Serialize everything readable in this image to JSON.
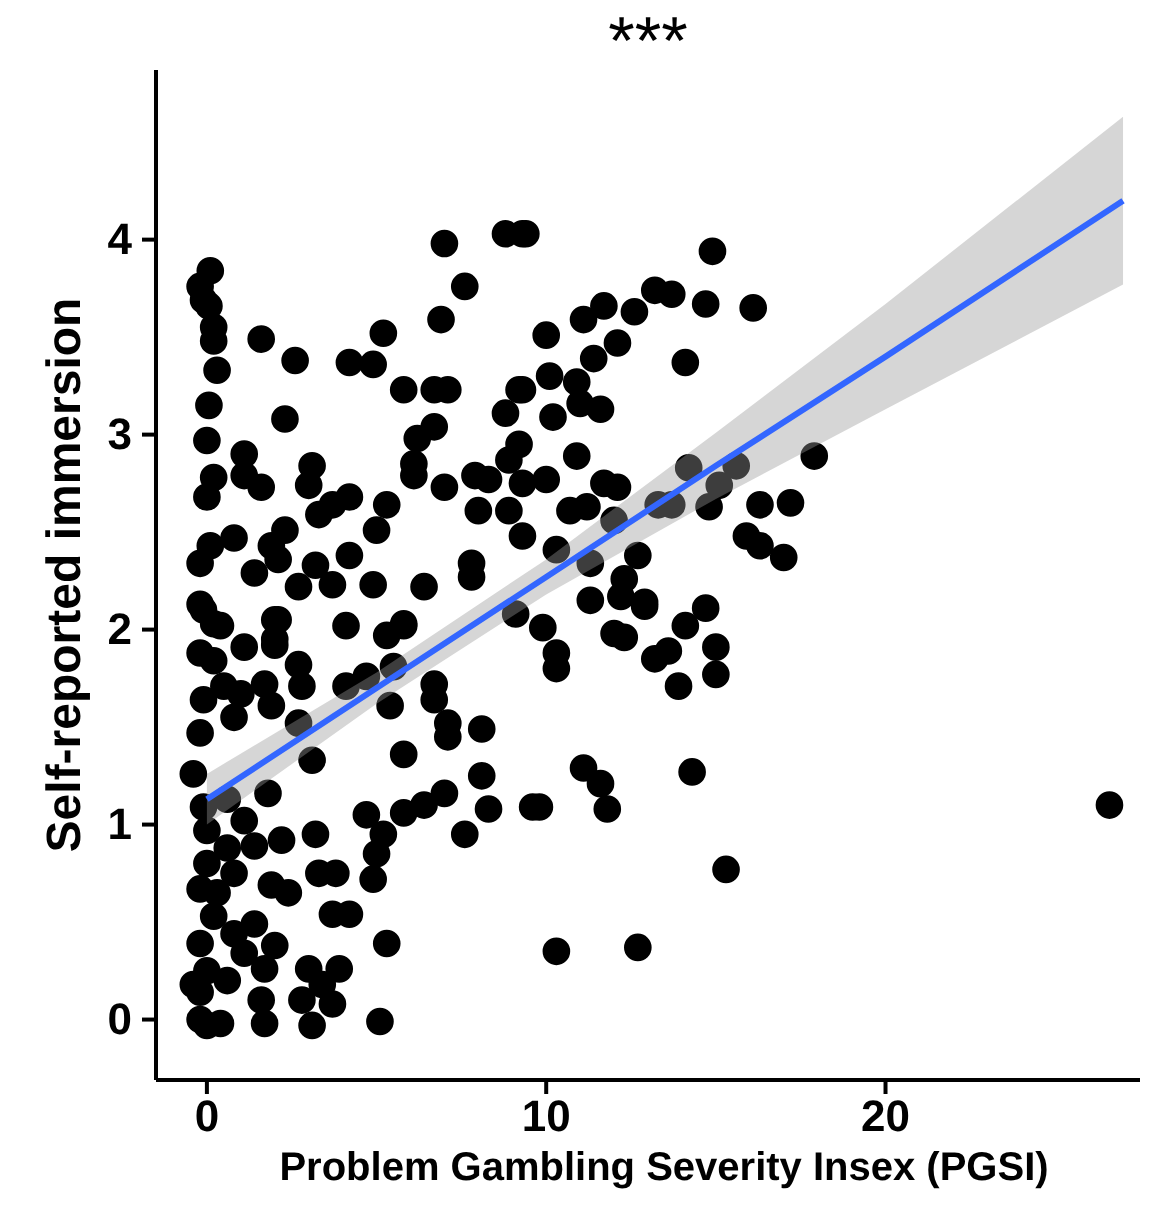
{
  "chart_data": {
    "type": "scatter",
    "title": "***",
    "xlabel": "Problem Gambling Severity Insex (PGSI)",
    "ylabel": "Self-reported immersion",
    "xlim": [
      -1.5,
      27.5
    ],
    "ylim": [
      -0.31,
      4.87
    ],
    "xticks": [
      0,
      10,
      20
    ],
    "yticks": [
      0,
      1,
      2,
      3,
      4
    ],
    "line_style": "solid",
    "series": [
      {
        "color": "#000000",
        "marker": "circle",
        "x": [
          26.6,
          9.8,
          11.1,
          11.6,
          11.8,
          14.3,
          15.3,
          10.3,
          12.7,
          9.9,
          10.3,
          10.3,
          11.3,
          12.2,
          12.9,
          12.0,
          12.3,
          13.2,
          13.6,
          13.9,
          14.1,
          14.7,
          15.0,
          15.0,
          9.4,
          14.9,
          10.0,
          11.1,
          11.7,
          12.6,
          13.2,
          13.7,
          14.7,
          16.1,
          12.1,
          11.4,
          14.1,
          10.1,
          10.9,
          11.0,
          11.6,
          10.2,
          9.3,
          10.9,
          10.0,
          11.7,
          12.1,
          10.7,
          11.2,
          12.0,
          14.2,
          15.6,
          17.9,
          13.3,
          13.7,
          14.8,
          15.1,
          16.3,
          17.2,
          15.9,
          16.3,
          17.0,
          10.3,
          11.3,
          12.7,
          12.3,
          12.9,
          0.1,
          -0.2,
          -0.1,
          0.06,
          0.2,
          0.2,
          0.3,
          0.06,
          0,
          0.2,
          0,
          0.1,
          -0.2,
          -0.2,
          0.2,
          1.6,
          2.6,
          2.3,
          1.1,
          1.1,
          1.6,
          0.8,
          1.9,
          1.4,
          2.1,
          2.3,
          3.1,
          3.0,
          3.3,
          3.7,
          4.2,
          2.7,
          3.2,
          3.7,
          4.2,
          4.9,
          5.0,
          5.3,
          2.1,
          4.1,
          5.8,
          4.2,
          4.9,
          5.2,
          5.8,
          6.7,
          7.1,
          7.0,
          7.6,
          6.9,
          8.8,
          9.3,
          9.2,
          8.8,
          6.7,
          6.2,
          6.1,
          6.1,
          7.0,
          7.9,
          8.3,
          9.2,
          8.9,
          9.3,
          8.0,
          8.9,
          9.3,
          7.8,
          7.8,
          6.4,
          9.1,
          2.0,
          2.0,
          1.1,
          2.0,
          2.7,
          1.7,
          2.8,
          5.3,
          5.8,
          4.1,
          4.7,
          5.5,
          5.4,
          6.7,
          6.7,
          7.1,
          7.1,
          8.1,
          5.8,
          2.7,
          3.1,
          1.9,
          1.8,
          8.1,
          7.0,
          6.4,
          5.8,
          4.7,
          5.2,
          5.0,
          4.9,
          8.3,
          9.6,
          7.6,
          3.2,
          2.2,
          3.3,
          3.8,
          1.9,
          2.4,
          3.7,
          4.2,
          1.4,
          5.3,
          1.1,
          2.0,
          1.7,
          3.0,
          3.9,
          3.4,
          2.8,
          1.6,
          3.7,
          1.7,
          3.1,
          5.1,
          0.4,
          -0.2,
          0.6,
          0.8,
          0.3,
          0.8,
          0.6,
          1.4,
          1.1,
          0.6,
          -0.1,
          -0.4,
          -0.2,
          -0.1,
          0.5,
          0.2,
          -0.2,
          0.4,
          -0.1,
          1.0,
          0.8,
          -0.2,
          -0.2,
          0,
          -0.2,
          0.2,
          0,
          0,
          -0.4,
          0
        ],
        "values": [
          1.1,
          1.09,
          1.29,
          1.21,
          1.08,
          1.27,
          0.77,
          0.35,
          0.37,
          2.01,
          1.88,
          1.8,
          2.15,
          2.17,
          2.12,
          1.98,
          1.96,
          1.85,
          1.89,
          1.71,
          2.02,
          2.11,
          1.91,
          1.77,
          4.03,
          3.94,
          3.51,
          3.59,
          3.66,
          3.63,
          3.74,
          3.72,
          3.67,
          3.65,
          3.47,
          3.39,
          3.37,
          3.3,
          3.27,
          3.16,
          3.13,
          3.09,
          3.23,
          2.89,
          2.77,
          2.75,
          2.73,
          2.61,
          2.63,
          2.56,
          2.83,
          2.84,
          2.89,
          2.64,
          2.64,
          2.63,
          2.74,
          2.64,
          2.65,
          2.48,
          2.43,
          2.37,
          2.41,
          2.34,
          2.38,
          2.26,
          2.14,
          3.84,
          3.76,
          3.69,
          3.66,
          3.55,
          3.48,
          3.33,
          3.15,
          2.97,
          2.78,
          2.68,
          2.43,
          2.34,
          2.13,
          2.03,
          3.49,
          3.38,
          3.08,
          2.9,
          2.79,
          2.73,
          2.47,
          2.43,
          2.29,
          2.36,
          2.51,
          2.84,
          2.74,
          2.59,
          2.64,
          2.68,
          2.22,
          2.33,
          2.23,
          2.38,
          2.23,
          2.51,
          2.64,
          2.05,
          2.02,
          2.03,
          3.37,
          3.36,
          3.52,
          3.23,
          3.23,
          3.23,
          3.98,
          3.76,
          3.59,
          4.03,
          4.03,
          3.23,
          3.11,
          3.04,
          2.98,
          2.85,
          2.79,
          2.73,
          2.79,
          2.77,
          2.95,
          2.87,
          2.75,
          2.61,
          2.61,
          2.48,
          2.34,
          2.27,
          2.22,
          2.08,
          2.05,
          1.95,
          1.91,
          1.92,
          1.82,
          1.72,
          1.71,
          1.97,
          2.02,
          1.71,
          1.76,
          1.81,
          1.61,
          1.72,
          1.64,
          1.52,
          1.45,
          1.49,
          1.36,
          1.52,
          1.33,
          1.61,
          1.16,
          1.25,
          1.16,
          1.1,
          1.06,
          1.05,
          0.95,
          0.85,
          0.72,
          1.08,
          1.09,
          0.95,
          0.95,
          0.92,
          0.75,
          0.75,
          0.69,
          0.65,
          0.54,
          0.54,
          0.49,
          0.39,
          0.34,
          0.38,
          0.26,
          0.26,
          0.26,
          0.18,
          0.1,
          0.1,
          0.08,
          -0.02,
          -0.03,
          -0.01,
          -0.02,
          0.0,
          0.2,
          0.44,
          0.65,
          0.75,
          0.88,
          0.89,
          1.02,
          1.13,
          1.09,
          1.26,
          1.47,
          1.64,
          1.71,
          1.84,
          1.88,
          2.02,
          2.1,
          1.67,
          1.55,
          0.67,
          0.39,
          0.25,
          0.14,
          0.53,
          0.8,
          0.97,
          0.18,
          -0.03
        ]
      },
      {
        "type": "line",
        "marker": "none",
        "color": "#3366ff",
        "x": [
          0,
          5,
          10,
          15,
          20,
          27
        ],
        "values": [
          1.13,
          1.7,
          2.27,
          2.84,
          3.4,
          4.2
        ],
        "lower": [
          1.0,
          1.62,
          2.18,
          2.67,
          3.13,
          3.77
        ],
        "upper": [
          1.26,
          1.78,
          2.36,
          3.01,
          3.67,
          4.63
        ]
      }
    ]
  }
}
